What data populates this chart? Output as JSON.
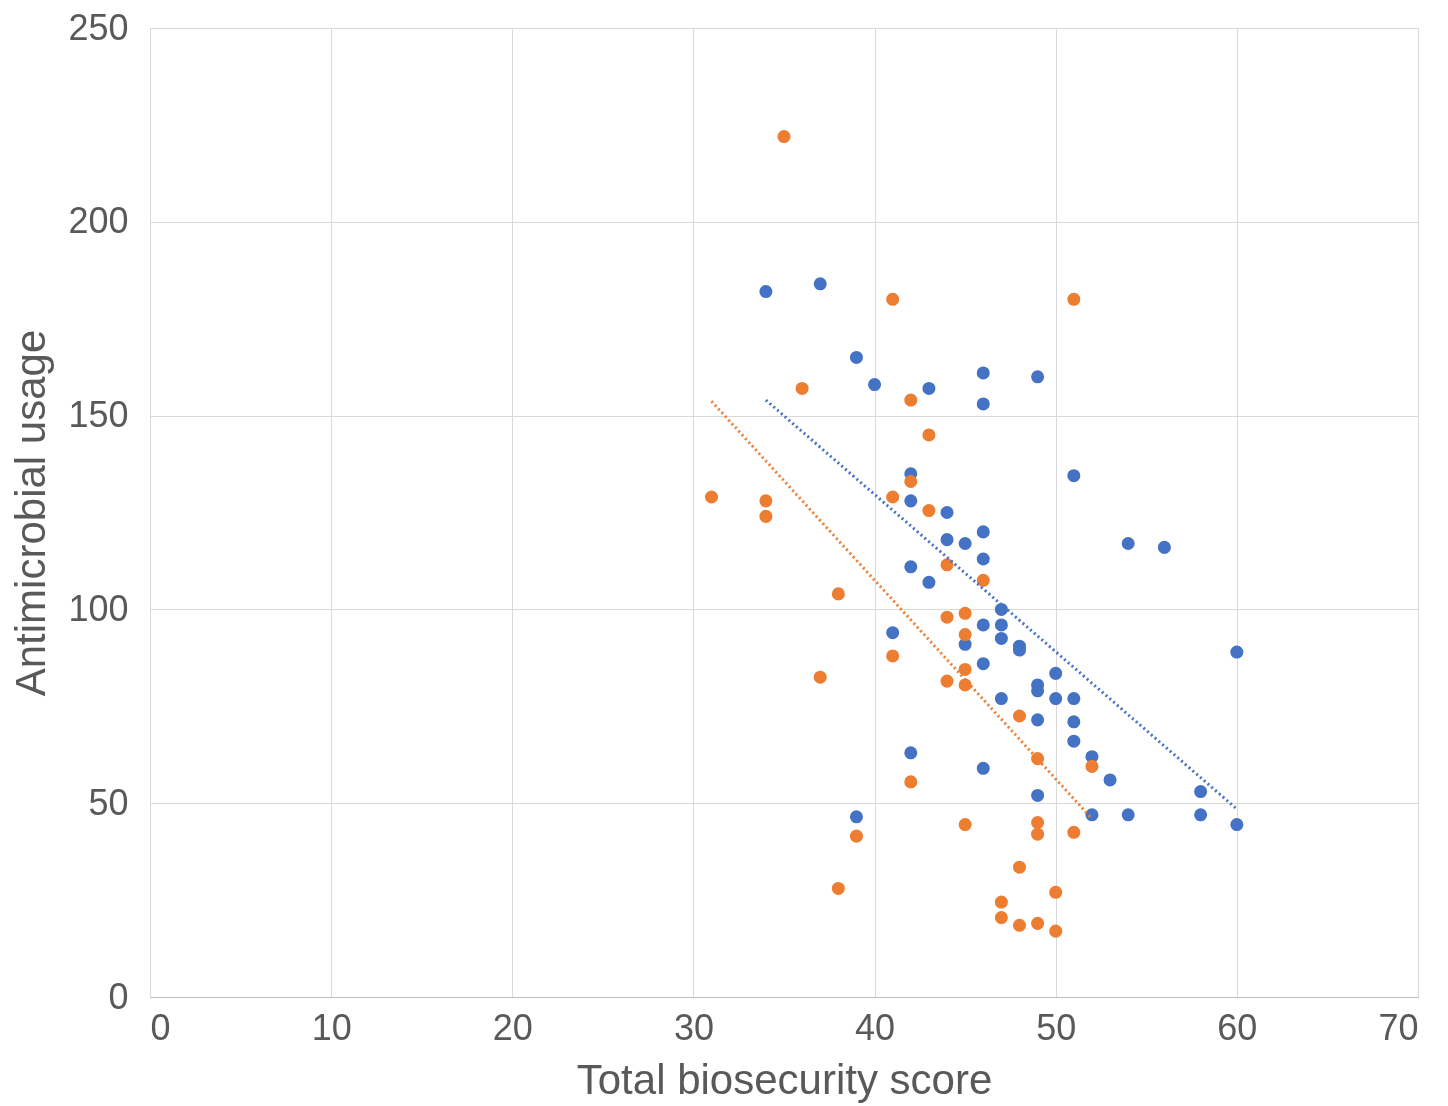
{
  "chart_data": {
    "type": "scatter",
    "xlabel": "Total biosecurity score",
    "ylabel": "Antimicrobial usage",
    "xlim": [
      0,
      70
    ],
    "xticks": [
      0,
      10,
      20,
      30,
      40,
      50,
      60,
      70
    ],
    "ylim": [
      0,
      250
    ],
    "yticks": [
      0,
      50,
      100,
      150,
      200,
      250
    ],
    "grid": true,
    "series": [
      {
        "marker": "circle",
        "color": "#4472c4",
        "x": [
          34,
          37,
          39,
          40,
          43,
          46,
          46,
          49,
          51,
          42,
          42,
          44,
          44,
          45,
          46,
          46,
          42,
          43,
          54,
          56,
          47,
          47,
          46,
          47,
          48,
          48,
          41,
          45,
          46,
          60,
          50,
          49,
          49,
          50,
          51,
          47,
          49,
          51,
          51,
          52,
          53,
          42,
          46,
          49,
          58,
          58,
          52,
          54,
          60,
          39
        ],
        "values": [
          182,
          184,
          165,
          158,
          157,
          161,
          153,
          160,
          134.5,
          135,
          128,
          125,
          118,
          117,
          120,
          113,
          111,
          107,
          117,
          116,
          100,
          96,
          96,
          92.5,
          90.5,
          89.5,
          94,
          91,
          86,
          89,
          83.5,
          80.5,
          79,
          77,
          77,
          77,
          71.5,
          71,
          66,
          62,
          56,
          63,
          59,
          52,
          53,
          47,
          47,
          47,
          44.5,
          46.5
        ]
      },
      {
        "marker": "circle",
        "color": "#ed7d31",
        "x": [
          35,
          41,
          51,
          36,
          42,
          43,
          31,
          34,
          34,
          41,
          42,
          43,
          44,
          46,
          38,
          44,
          45,
          45,
          41,
          45,
          44,
          45,
          37,
          48,
          49,
          52,
          42,
          45,
          49,
          49,
          51,
          39,
          48,
          38,
          50,
          47,
          47,
          48,
          49,
          50
        ],
        "values": [
          222,
          180,
          180,
          157,
          154,
          145,
          129,
          128,
          124,
          129,
          133,
          125.5,
          111.5,
          107.5,
          104,
          98,
          99,
          93.5,
          88,
          84.5,
          81.5,
          80.5,
          82.5,
          72.5,
          61.5,
          59.5,
          55.5,
          44.5,
          45,
          42,
          42.5,
          41.5,
          33.5,
          28,
          27,
          24.5,
          20.5,
          18.5,
          19,
          17
        ]
      },
      {
        "type": "line",
        "line_style": "dotted",
        "color": "#4472c4",
        "x": [
          34,
          60
        ],
        "values": [
          154,
          48.5
        ]
      },
      {
        "type": "line",
        "line_style": "dotted",
        "color": "#ed7d31",
        "x": [
          31,
          52
        ],
        "values": [
          153.7,
          46
        ]
      }
    ]
  }
}
